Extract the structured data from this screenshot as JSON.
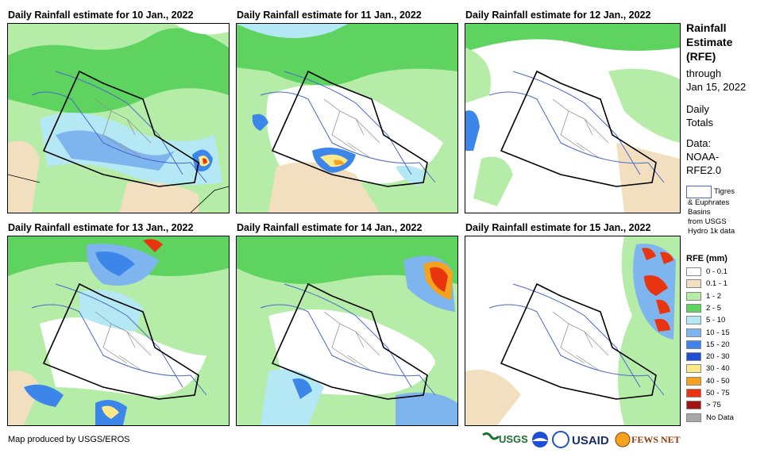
{
  "panels": [
    {
      "title": "Daily Rainfall estimate for 10 Jan., 2022"
    },
    {
      "title": "Daily Rainfall estimate for 11 Jan., 2022"
    },
    {
      "title": "Daily Rainfall estimate for 12 Jan., 2022"
    },
    {
      "title": "Daily Rainfall estimate for 13 Jan., 2022"
    },
    {
      "title": "Daily Rainfall estimate for 14 Jan., 2022"
    },
    {
      "title": "Daily Rainfall estimate for 15 Jan., 2022"
    }
  ],
  "legend": {
    "title_lines": [
      "Rainfall",
      "Estimate",
      "(RFE)"
    ],
    "through": "through",
    "date": "Jan 15, 2022",
    "daily": "Daily",
    "totals": "Totals",
    "data_label": "Data:",
    "data_source_1": "NOAA-",
    "data_source_2": "RFE2.0",
    "basin_label": "Tigres",
    "basin_note_1": "& Euphrates",
    "basin_note_2": "Basins",
    "basin_note_3": "from USGS",
    "basin_note_4": "Hydro 1k data",
    "rfe_title": "RFE (mm)",
    "classes": [
      {
        "label": "0 - 0.1",
        "color": "#ffffff"
      },
      {
        "label": "0.1 - 1",
        "color": "#f2dfc0"
      },
      {
        "label": "1 - 2",
        "color": "#b5eca8"
      },
      {
        "label": "2 - 5",
        "color": "#5fd35f"
      },
      {
        "label": "5 - 10",
        "color": "#b4e8f4"
      },
      {
        "label": "10 - 15",
        "color": "#7fb5ee"
      },
      {
        "label": "15 - 20",
        "color": "#3c86ea"
      },
      {
        "label": "20 - 30",
        "color": "#1f4fd4"
      },
      {
        "label": "30 - 40",
        "color": "#fde88a"
      },
      {
        "label": "40 - 50",
        "color": "#f5a21e"
      },
      {
        "label": "50 - 75",
        "color": "#e8350f"
      },
      {
        "label": "> 75",
        "color": "#a11413"
      },
      {
        "label": "No Data",
        "color": "#a8a8a8"
      }
    ]
  },
  "footer": {
    "credit": "Map produced by USGS/EROS",
    "logos": [
      "USGS",
      "NOAA",
      "DOI",
      "USAID",
      "FEWS NET"
    ]
  }
}
